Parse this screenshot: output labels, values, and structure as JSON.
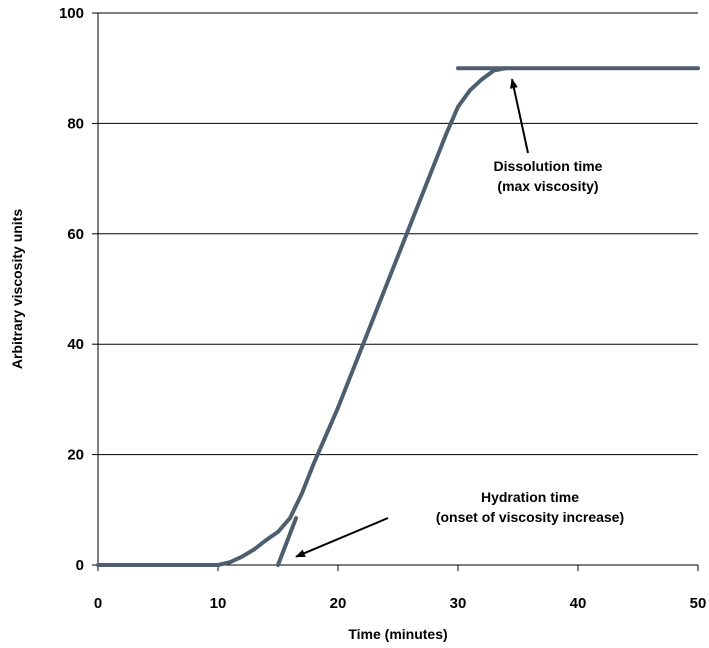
{
  "chart_data": {
    "type": "line",
    "title": "",
    "xlabel": "Time (minutes)",
    "ylabel": "Arbitrary viscosity units",
    "xlim": [
      0,
      50
    ],
    "ylim": [
      0,
      100
    ],
    "xticks": [
      0,
      10,
      20,
      30,
      40,
      50
    ],
    "yticks": [
      0,
      20,
      40,
      60,
      80,
      100
    ],
    "grid": "horizontal",
    "color": "#4d5e6e",
    "series": [
      {
        "points": [
          [
            0,
            0
          ],
          [
            10,
            0
          ],
          [
            11,
            0.5
          ],
          [
            12,
            1.5
          ],
          [
            13,
            2.8
          ],
          [
            14,
            4.5
          ],
          [
            15,
            6
          ],
          [
            16,
            8.5
          ],
          [
            17,
            13
          ],
          [
            18,
            18.5
          ],
          [
            19,
            23.5
          ],
          [
            20,
            28.5
          ],
          [
            21,
            34
          ],
          [
            22,
            39.5
          ],
          [
            23,
            45
          ],
          [
            24,
            50.5
          ],
          [
            25,
            56
          ],
          [
            26,
            61.5
          ],
          [
            27,
            67
          ],
          [
            28,
            72.5
          ],
          [
            29,
            78
          ],
          [
            30,
            83
          ],
          [
            31,
            86
          ],
          [
            32,
            88
          ],
          [
            33,
            89.6
          ],
          [
            34,
            90
          ]
        ]
      },
      {
        "points": [
          [
            30,
            90
          ],
          [
            50,
            90
          ]
        ]
      },
      {
        "points": [
          [
            15,
            0
          ],
          [
            16.5,
            8.5
          ]
        ]
      }
    ],
    "annotations": [
      {
        "text_lines": [
          "Dissolution time",
          "(max viscosity)"
        ],
        "arrow_to": [
          34.5,
          88
        ]
      },
      {
        "text_lines": [
          "Hydration time",
          "(onset of viscosity increase)"
        ],
        "arrow_to": [
          16.5,
          1.5
        ]
      }
    ]
  }
}
